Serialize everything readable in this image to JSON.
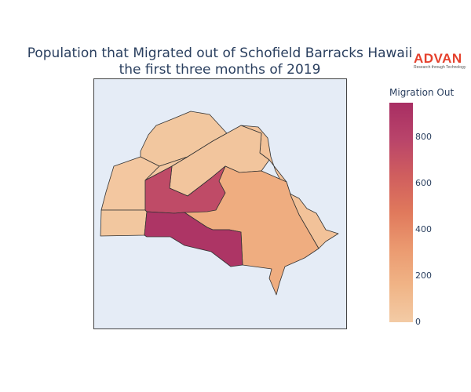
{
  "title": {
    "line1": "Population that Migrated out of Schofield Barracks Hawaii",
    "line2": "the first three months of 2019"
  },
  "logo": {
    "text": "ADVAN",
    "tagline": "Research through Technology"
  },
  "legend": {
    "title": "Migration Out",
    "min": 0,
    "max": 950,
    "ticks": [
      {
        "value": 0,
        "label": "0"
      },
      {
        "value": 200,
        "label": "200"
      },
      {
        "value": 400,
        "label": "400"
      },
      {
        "value": 600,
        "label": "600"
      },
      {
        "value": 800,
        "label": "800"
      }
    ],
    "colorscale": [
      "#f3cba5",
      "#f0b486",
      "#eb9a70",
      "#e0795c",
      "#d05e5e",
      "#b9446a",
      "#a82e63"
    ]
  },
  "colors": {
    "map_background": "#e5ecf6",
    "map_frame": "#444444",
    "region_border": "#333333"
  },
  "regions": [
    {
      "id": "r1",
      "value": 30
    },
    {
      "id": "r2",
      "value": 25
    },
    {
      "id": "r3",
      "value": 20
    },
    {
      "id": "r4",
      "value": 40
    },
    {
      "id": "r5",
      "value": 30
    },
    {
      "id": "r6",
      "value": 200
    },
    {
      "id": "r7",
      "value": 900
    },
    {
      "id": "r8",
      "value": 750
    },
    {
      "id": "r9",
      "value": 260
    },
    {
      "id": "r10",
      "value": 60
    }
  ]
}
